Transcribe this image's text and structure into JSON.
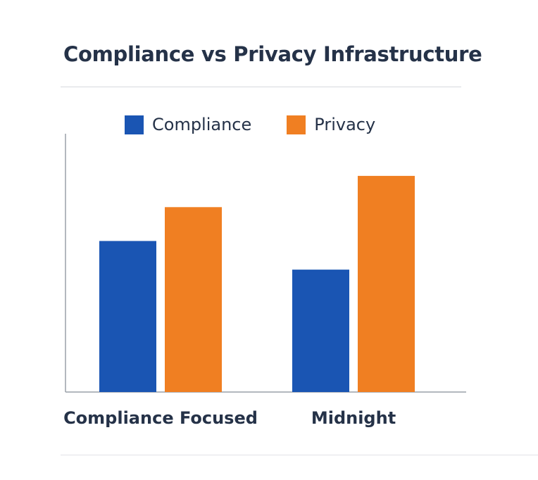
{
  "chart_data": {
    "type": "bar",
    "title": "Compliance vs Privacy Infrastructure",
    "categories": [
      "Compliance Focused",
      "Midnight"
    ],
    "series": [
      {
        "name": "Compliance",
        "values": [
          58,
          47
        ],
        "color": "#1a55b3"
      },
      {
        "name": "Privacy",
        "values": [
          71,
          83
        ],
        "color": "#f07f22"
      }
    ],
    "xlabel": "",
    "ylabel": "",
    "ylim": [
      0,
      100
    ],
    "grid": false,
    "legend_position": "top"
  }
}
